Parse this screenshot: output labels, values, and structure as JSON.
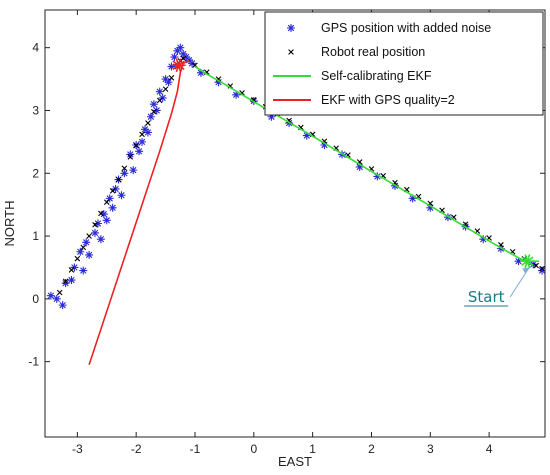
{
  "chart_data": {
    "type": "line",
    "xlabel": "EAST",
    "ylabel": "NORTH",
    "xlim": [
      -3.55,
      4.95
    ],
    "ylim": [
      -2.2,
      4.6
    ],
    "xticks": [
      -3,
      -2,
      -1,
      0,
      1,
      2,
      3,
      4
    ],
    "yticks": [
      -1,
      0,
      1,
      2,
      3,
      4
    ],
    "tick_labels_x": [
      "-3",
      "-2",
      "-1",
      "0",
      "1",
      "2",
      "3",
      "4"
    ],
    "tick_labels_y": [
      "-1",
      "0",
      "1",
      "2",
      "3",
      "4"
    ],
    "grid": false,
    "legend_position": "top-right",
    "series": [
      {
        "name": "GPS position with added noise",
        "style": "markers-star",
        "color": "#2a2ad8",
        "x": [
          -3.45,
          -3.35,
          -3.25,
          -3.2,
          -3.1,
          -3.05,
          -2.95,
          -2.9,
          -2.85,
          -2.8,
          -2.7,
          -2.65,
          -2.6,
          -2.55,
          -2.5,
          -2.45,
          -2.4,
          -2.35,
          -2.3,
          -2.25,
          -2.2,
          -2.1,
          -2.05,
          -2.0,
          -1.95,
          -1.9,
          -1.85,
          -1.8,
          -1.75,
          -1.7,
          -1.65,
          -1.6,
          -1.55,
          -1.5,
          -1.45,
          -1.4,
          -1.35,
          -1.3,
          -1.25,
          -1.2,
          -1.15,
          -1.1,
          -1.05,
          -0.9,
          -0.6,
          -0.3,
          0.0,
          0.3,
          0.6,
          0.9,
          1.2,
          1.5,
          1.8,
          2.1,
          2.4,
          2.7,
          3.0,
          3.3,
          3.6,
          3.9,
          4.2,
          4.5,
          4.75,
          4.9
        ],
        "y": [
          0.05,
          0.0,
          -0.1,
          0.25,
          0.3,
          0.5,
          0.75,
          0.45,
          0.9,
          0.7,
          1.05,
          1.2,
          0.95,
          1.35,
          1.25,
          1.6,
          1.45,
          1.75,
          1.9,
          1.65,
          2.0,
          2.3,
          2.05,
          2.45,
          2.35,
          2.5,
          2.7,
          2.65,
          2.9,
          3.1,
          3.0,
          3.3,
          3.2,
          3.5,
          3.45,
          3.7,
          3.85,
          3.95,
          4.0,
          3.9,
          3.85,
          3.8,
          3.75,
          3.6,
          3.45,
          3.25,
          3.15,
          2.9,
          2.8,
          2.6,
          2.45,
          2.3,
          2.1,
          1.95,
          1.8,
          1.6,
          1.45,
          1.3,
          1.15,
          0.95,
          0.8,
          0.6,
          0.55,
          0.45
        ]
      },
      {
        "name": "Robot real position",
        "style": "markers-x",
        "color": "#000000",
        "x": [
          -3.3,
          -3.2,
          -3.1,
          -3.0,
          -2.9,
          -2.8,
          -2.7,
          -2.6,
          -2.5,
          -2.4,
          -2.3,
          -2.2,
          -2.1,
          -2.0,
          -1.9,
          -1.8,
          -1.7,
          -1.6,
          -1.5,
          -1.4,
          -1.3,
          -1.25,
          -1.2,
          -1.0,
          -0.8,
          -0.6,
          -0.4,
          -0.2,
          0.0,
          0.2,
          0.4,
          0.6,
          0.8,
          1.0,
          1.2,
          1.4,
          1.6,
          1.8,
          2.0,
          2.2,
          2.4,
          2.6,
          2.8,
          3.0,
          3.2,
          3.4,
          3.6,
          3.8,
          4.0,
          4.2,
          4.4,
          4.6,
          4.8,
          4.9
        ],
        "y": [
          0.1,
          0.28,
          0.46,
          0.64,
          0.82,
          1.0,
          1.18,
          1.36,
          1.54,
          1.72,
          1.9,
          2.08,
          2.26,
          2.44,
          2.62,
          2.8,
          2.98,
          3.16,
          3.34,
          3.52,
          3.7,
          3.79,
          3.83,
          3.72,
          3.61,
          3.5,
          3.39,
          3.28,
          3.17,
          3.06,
          2.95,
          2.84,
          2.73,
          2.62,
          2.51,
          2.4,
          2.29,
          2.18,
          2.07,
          1.96,
          1.85,
          1.74,
          1.63,
          1.52,
          1.41,
          1.3,
          1.19,
          1.08,
          0.97,
          0.86,
          0.75,
          0.64,
          0.53,
          0.48
        ]
      },
      {
        "name": "Self-calibrating EKF",
        "style": "line",
        "color": "#33dd33",
        "x": [
          4.85,
          4.7,
          4.6,
          4.0,
          3.0,
          2.0,
          1.0,
          0.0,
          -0.5,
          -0.8,
          -1.0
        ],
        "y": [
          0.6,
          0.6,
          0.6,
          0.92,
          1.48,
          2.03,
          2.59,
          3.14,
          3.42,
          3.58,
          3.7
        ]
      },
      {
        "name": "EKF with GPS quality=2",
        "style": "line",
        "color": "#ee2222",
        "x": [
          -2.8,
          -2.5,
          -2.2,
          -1.9,
          -1.6,
          -1.4,
          -1.3,
          -1.25,
          -1.2,
          -1.1
        ],
        "y": [
          -1.05,
          -0.2,
          0.65,
          1.5,
          2.35,
          2.95,
          3.3,
          3.6,
          3.75,
          3.8
        ]
      }
    ],
    "annotations": [
      {
        "text": "Start",
        "x": 3.95,
        "y": -0.05,
        "target_x": 4.7,
        "target_y": 0.5
      }
    ]
  },
  "colors": {
    "gps_blue": "#2a2ad8",
    "robot_black": "#000000",
    "self_cal_green": "#33dd33",
    "ekf_red": "#ee2222",
    "annotation_teal": "#1a7a8a",
    "arrow_blue": "#7aaed8"
  }
}
